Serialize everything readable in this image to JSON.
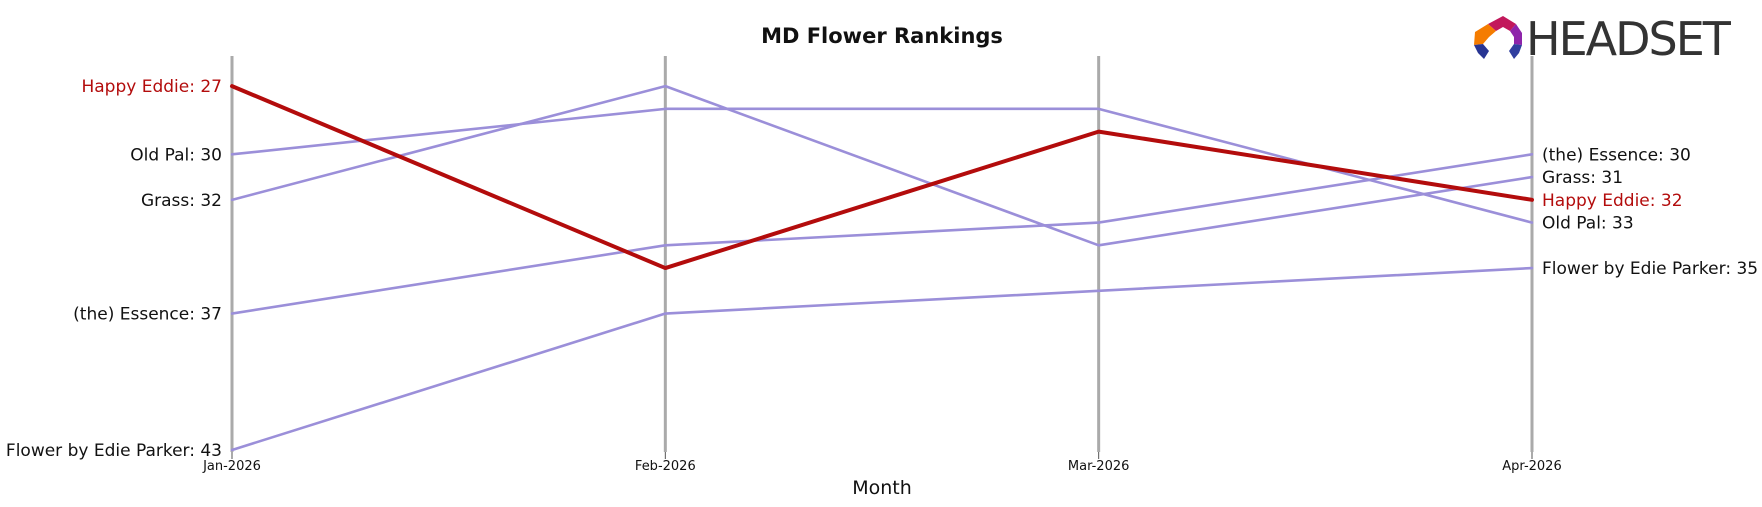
{
  "chart_data": {
    "type": "line",
    "title": "MD Flower Rankings",
    "xlabel": "Month",
    "ylabel": "",
    "categories": [
      "Jan-2026",
      "Feb-2026",
      "Mar-2026",
      "Apr-2026"
    ],
    "y_inverted": true,
    "ylim": [
      25.5,
      43
    ],
    "grid": false,
    "series": [
      {
        "name": "Happy Eddie",
        "values": [
          27,
          35,
          29,
          32
        ],
        "highlight": true
      },
      {
        "name": "Old Pal",
        "values": [
          30,
          28,
          28,
          33
        ],
        "highlight": false
      },
      {
        "name": "Grass",
        "values": [
          32,
          27,
          34,
          31
        ],
        "highlight": false
      },
      {
        "name": "(the) Essence",
        "values": [
          37,
          34,
          33,
          30
        ],
        "highlight": false
      },
      {
        "name": "Flower by Edie Parker",
        "values": [
          43,
          37,
          36,
          35
        ],
        "highlight": false
      }
    ],
    "colors": {
      "highlight": "#b30c0c",
      "other": "#9b8fd9",
      "axis": "#aaaaaa",
      "text": "#111111"
    }
  },
  "logo": {
    "text": "HEADSET"
  }
}
